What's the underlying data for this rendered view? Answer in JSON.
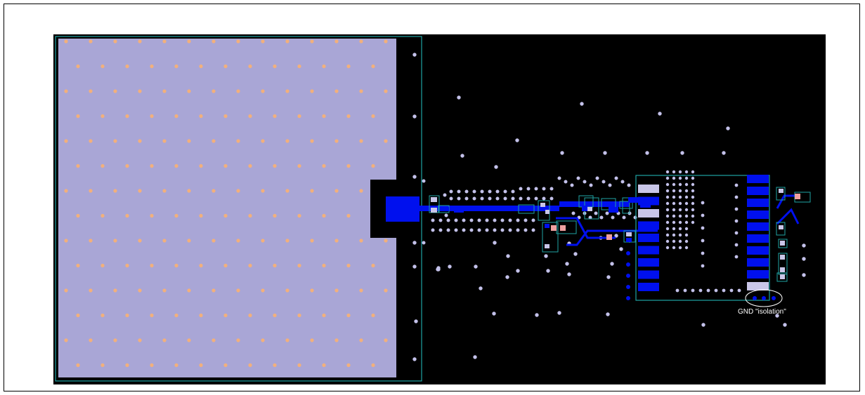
{
  "annotation": {
    "text": "GND \"isolation\""
  },
  "colors": {
    "background": "#000000",
    "ground_pour": "#a9a6d6",
    "thermal_via": "#f2b07c",
    "via": "#c3c1ea",
    "copper": "#0010ee",
    "outline": "#1fa3a3",
    "pad": "#c9c6e8",
    "resistor": "#f0a0a0"
  }
}
